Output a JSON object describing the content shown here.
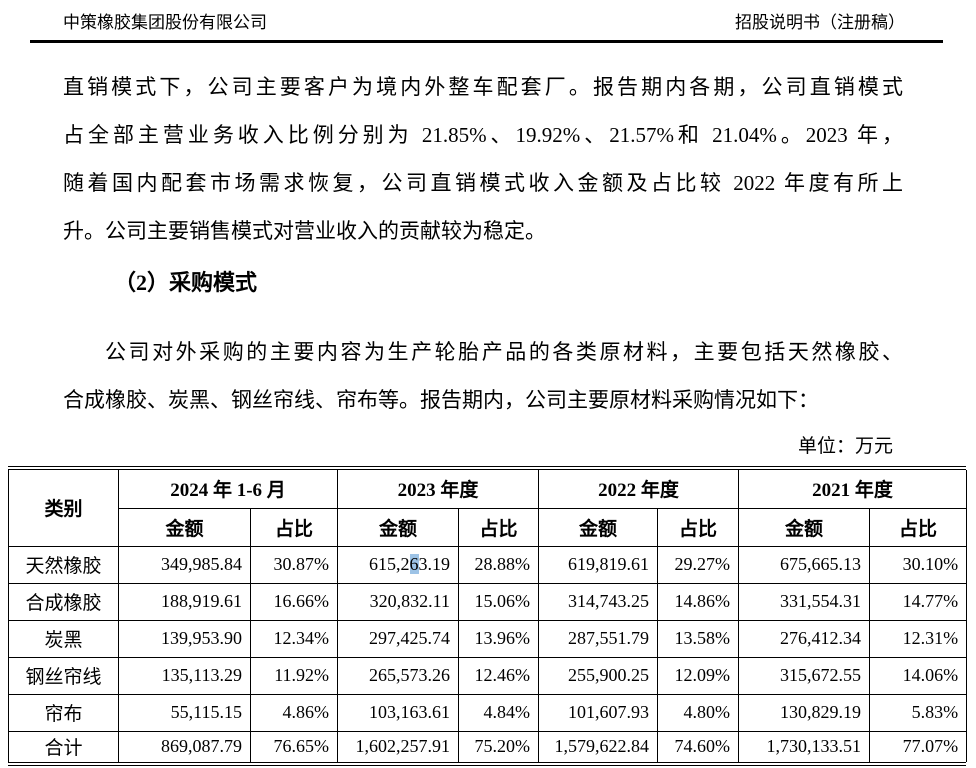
{
  "page_header": {
    "company": "中策橡胶集团股份有限公司",
    "doc_title": "招股说明书（注册稿）"
  },
  "paragraph1_lines": [
    "直销模式下，公司主要客户为境内外整车配套厂。报告期内各期，公司直销模式",
    "占全部主营业务收入比例分别为 21.85%、19.92%、21.57%和 21.04%。2023 年，",
    "随着国内配套市场需求恢复，公司直销模式收入金额及占比较 2022 年度有所上",
    "升。公司主要销售模式对营业收入的贡献较为稳定。"
  ],
  "section_heading": "（2）采购模式",
  "paragraph2_lines": [
    "公司对外采购的主要内容为生产轮胎产品的各类原材料，主要包括天然橡胶、",
    "合成橡胶、炭黑、钢丝帘线、帘布等。报告期内，公司主要原材料采购情况如下："
  ],
  "unit_label": "单位：万元",
  "table": {
    "category_header": "类别",
    "period_headers": [
      "2024 年 1-6 月",
      "2023 年度",
      "2022 年度",
      "2021 年度"
    ],
    "sub_headers": [
      "金额",
      "占比"
    ],
    "rows": [
      {
        "category": "天然橡胶",
        "values": [
          "349,985.84",
          "30.87%",
          "615,263.19",
          "28.88%",
          "619,819.61",
          "29.27%",
          "675,665.13",
          "30.10%"
        ]
      },
      {
        "category": "合成橡胶",
        "values": [
          "188,919.61",
          "16.66%",
          "320,832.11",
          "15.06%",
          "314,743.25",
          "14.86%",
          "331,554.31",
          "14.77%"
        ]
      },
      {
        "category": "炭黑",
        "values": [
          "139,953.90",
          "12.34%",
          "297,425.74",
          "13.96%",
          "287,551.79",
          "13.58%",
          "276,412.34",
          "12.31%"
        ]
      },
      {
        "category": "钢丝帘线",
        "values": [
          "135,113.29",
          "11.92%",
          "265,573.26",
          "12.46%",
          "255,900.25",
          "12.09%",
          "315,672.55",
          "14.06%"
        ]
      },
      {
        "category": "帘布",
        "values": [
          "55,115.15",
          "4.86%",
          "103,163.61",
          "4.84%",
          "101,607.93",
          "4.80%",
          "130,829.19",
          "5.83%"
        ]
      }
    ],
    "total_row": {
      "category": "合计",
      "values": [
        "869,087.79",
        "76.65%",
        "1,602,257.91",
        "75.20%",
        "1,579,622.84",
        "74.60%",
        "1,730,133.51",
        "77.07%"
      ]
    },
    "selection_highlight": {
      "row_index": 0,
      "value_index": 2,
      "pre": "615,2",
      "highlighted": "6",
      "post": "3.19",
      "color": "#9dc3e6"
    }
  }
}
